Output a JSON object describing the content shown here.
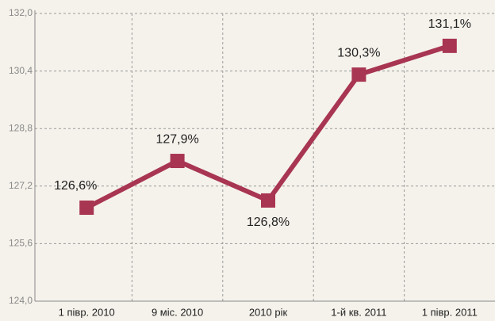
{
  "chart_data": {
    "type": "line",
    "categories": [
      "1 півр. 2010",
      "9 міс. 2010",
      "2010 рік",
      "1-й кв. 2011",
      "1 півр. 2011"
    ],
    "values": [
      126.6,
      127.9,
      126.8,
      130.3,
      131.1
    ],
    "value_labels": [
      "126,6%",
      "127,9%",
      "126,8%",
      "130,3%",
      "131,1%"
    ],
    "color": "#a83552",
    "ylim": [
      124.0,
      132.0
    ],
    "yticks": [
      {
        "value": 124.0,
        "label": "124,0"
      },
      {
        "value": 125.6,
        "label": "125,6"
      },
      {
        "value": 127.2,
        "label": "127,2"
      },
      {
        "value": 128.8,
        "label": "128,8"
      },
      {
        "value": 130.4,
        "label": "130,4"
      },
      {
        "value": 132.0,
        "label": "132,0"
      }
    ],
    "grid": true
  }
}
